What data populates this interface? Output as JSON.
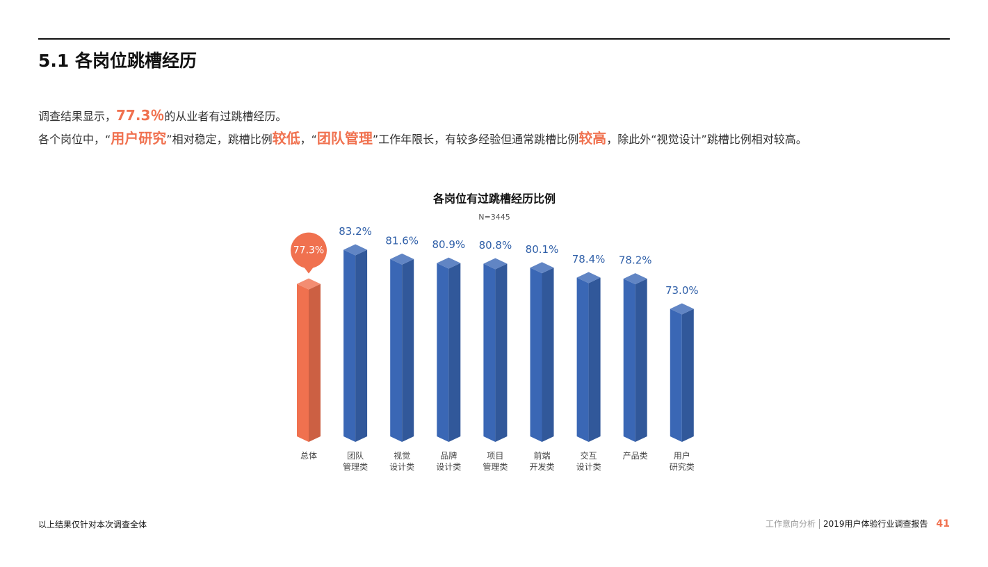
{
  "header": {
    "title": "5.1 各岗位跳槽经历"
  },
  "intro": {
    "line1": [
      "调查结果显示，",
      "77.3％",
      "的从业者有过跳槽经历。"
    ],
    "line2": [
      "各个岗位中，“",
      "用户研究",
      "”相对稳定，跳槽比例",
      "较低",
      "，“",
      "团队管理",
      "”工作年限长，有较多经验但通常跳槽比例",
      "较高",
      "，除此外“视觉设计”跳槽比例相对较高。"
    ]
  },
  "chart_data": {
    "type": "bar3d",
    "title": "各岗位有过跳槽经历比例",
    "subtitle": "N=3445",
    "categories": [
      "总体",
      "团队\n管理类",
      "视觉\n设计类",
      "品牌\n设计类",
      "项目\n管理类",
      "前端\n开发类",
      "交互\n设计类",
      "产品类",
      "用户\n研究类"
    ],
    "values": [
      77.3,
      83.2,
      81.6,
      80.9,
      80.8,
      80.1,
      78.4,
      78.2,
      73.0
    ],
    "value_labels": [
      "77.3%",
      "83.2%",
      "81.6%",
      "80.9%",
      "80.8%",
      "80.1%",
      "78.4%",
      "78.2%",
      "73.0%"
    ],
    "colors": [
      "#f0714f",
      "#3a67b5",
      "#3a67b5",
      "#3a67b5",
      "#3a67b5",
      "#3a67b5",
      "#3a67b5",
      "#3a67b5",
      "#3a67b5"
    ],
    "ylim": [
      50,
      85
    ]
  },
  "footer": {
    "note": "以上结果仅针对本次调查全体",
    "section": "工作意向分析",
    "report": "2019用户体验行业调查报告",
    "page": "41"
  }
}
